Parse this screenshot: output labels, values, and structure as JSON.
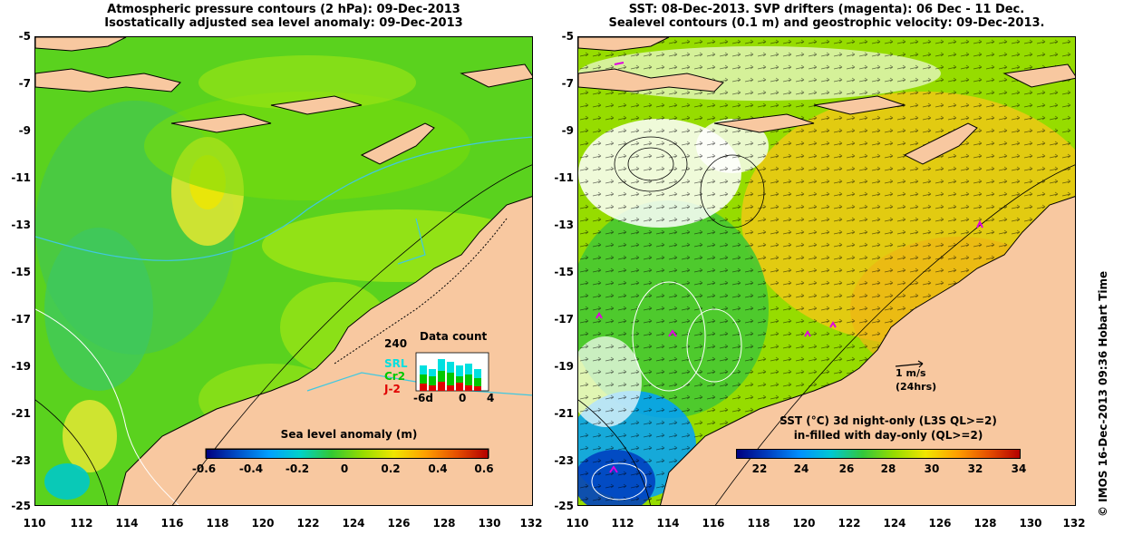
{
  "left_panel": {
    "title_line1": "Atmospheric pressure contours (2 hPa): 09-Dec-2013",
    "title_line2": "Isostatically adjusted sea level anomaly: 09-Dec-2013",
    "colorbar_title": "Sea level anomaly (m)",
    "colorbar_ticks": [
      "-0.6",
      "-0.4",
      "-0.2",
      "0",
      "0.2",
      "0.4",
      "0.6"
    ],
    "colorbar_colors": [
      "#000080",
      "#0050c8",
      "#00a0ff",
      "#00d2c8",
      "#32c832",
      "#96dc00",
      "#f0e600",
      "#ffa000",
      "#e65000",
      "#b40000"
    ],
    "inset": {
      "title": "Data count",
      "ymax": "240",
      "xticks": [
        "-6d",
        "0",
        "4"
      ],
      "legend": [
        {
          "label": "SRL",
          "color": "#00e0e0"
        },
        {
          "label": "Cr2",
          "color": "#00c800"
        },
        {
          "label": "J-2",
          "color": "#e00000"
        }
      ]
    }
  },
  "right_panel": {
    "title_line1": "SST: 08-Dec-2013. SVP drifters (magenta): 06 Dec - 11 Dec.",
    "title_line2": "Sealevel contours (0.1 m) and geostrophic velocity: 09-Dec-2013.",
    "colorbar_title_line1": "SST (°C)  3d night-only (L3S QL>=2)",
    "colorbar_title_line2": "in-filled with day-only (QL>=2)",
    "colorbar_ticks": [
      "22",
      "24",
      "26",
      "28",
      "30",
      "32",
      "34"
    ],
    "colorbar_colors": [
      "#000080",
      "#0040c0",
      "#0090ff",
      "#00c8d2",
      "#32c83c",
      "#96dc00",
      "#f0e600",
      "#ffa000",
      "#e65000",
      "#b40000"
    ],
    "scale_label_1": "1 m/s",
    "scale_label_2": "(24hrs)"
  },
  "axes": {
    "y_ticks": [
      "-5",
      "-7",
      "-9",
      "-11",
      "-13",
      "-15",
      "-17",
      "-19",
      "-21",
      "-23",
      "-25"
    ],
    "x_ticks": [
      "110",
      "112",
      "114",
      "116",
      "118",
      "120",
      "122",
      "124",
      "126",
      "128",
      "130",
      "132"
    ]
  },
  "credit": "© IMOS 16-Dec-2013 09:36 Hobart Time",
  "colors": {
    "land": "#f8c8a0",
    "sea_green": "#5ad21e",
    "sea_light": "#a0e614",
    "sea_yellow": "#dce632",
    "sea_orange": "#f0c814"
  }
}
